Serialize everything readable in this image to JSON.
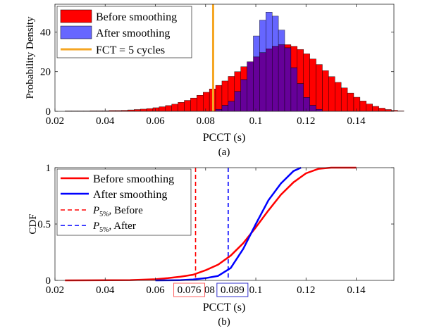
{
  "chart_data": [
    {
      "type": "histogram",
      "panel_caption": "(a)",
      "xlabel": "PCCT (s)",
      "ylabel": "Probability Density",
      "xlim": [
        0.02,
        0.155
      ],
      "ylim": [
        0,
        54
      ],
      "xticks": [
        0.02,
        0.04,
        0.06,
        0.08,
        0.1,
        0.12,
        0.14
      ],
      "xtick_labels": [
        "0.02",
        "0.04",
        "0.06",
        "0.08",
        "0.1",
        "0.12",
        "0.14"
      ],
      "yticks": [
        0,
        20,
        40
      ],
      "ytick_labels": [
        "0",
        "20",
        "40"
      ],
      "bin_start": 0.024,
      "bin_width": 0.0025,
      "series": [
        {
          "name": "Before smoothing",
          "color": "#ff0000",
          "values": [
            0.2,
            0.2,
            0.2,
            0.2,
            0.3,
            0.3,
            0.3,
            0.4,
            0.4,
            0.5,
            0.7,
            0.9,
            1.1,
            1.4,
            1.8,
            2.3,
            2.9,
            3.6,
            4.5,
            5.5,
            6.7,
            8.1,
            9.6,
            11.3,
            13.1,
            15.3,
            17.6,
            20,
            22.5,
            25,
            27.4,
            29.6,
            31.5,
            32.8,
            33.6,
            33.6,
            32.8,
            31.2,
            29,
            26.4,
            23.6,
            20.5,
            17.5,
            14.6,
            11.8,
            9.2,
            7.1,
            5.2,
            3.7,
            2.5,
            1.6,
            0.9,
            0.5,
            0.2
          ]
        },
        {
          "name": "After smoothing",
          "color": "#6666ff",
          "values": [
            0,
            0,
            0,
            0,
            0,
            0,
            0,
            0,
            0,
            0,
            0,
            0,
            0,
            0,
            0,
            0,
            0,
            0,
            0,
            0,
            0,
            0,
            0,
            0,
            1,
            3,
            5,
            10,
            16,
            25,
            38,
            46,
            50,
            48,
            41,
            32,
            22,
            14,
            7,
            3,
            1,
            0,
            0,
            0,
            0,
            0,
            0,
            0,
            0,
            0,
            0,
            0,
            0,
            0
          ]
        }
      ],
      "overlap_color": "#660099",
      "vline": {
        "name": "FCT = 5 cycles",
        "x": 0.083,
        "color": "#f5a623"
      },
      "legend": {
        "position": "top-left",
        "entries": [
          "Before smoothing",
          "After smoothing",
          "FCT = 5 cycles"
        ]
      }
    },
    {
      "type": "line",
      "panel_caption": "(b)",
      "xlabel": "PCCT (s)",
      "ylabel": "CDF",
      "xlim": [
        0.02,
        0.155
      ],
      "ylim": [
        0,
        1
      ],
      "xticks": [
        0.02,
        0.04,
        0.06,
        0.08,
        0.1,
        0.12,
        0.14
      ],
      "xtick_labels": [
        "0.02",
        "0.04",
        "0.06",
        "0.08",
        "0.1",
        "0.12",
        "0.14"
      ],
      "yticks": [
        0,
        0.5,
        1
      ],
      "ytick_labels": [
        "0",
        "0.5",
        "1"
      ],
      "series": [
        {
          "name": "Before smoothing",
          "color": "#ff0000",
          "x": [
            0.024,
            0.05,
            0.06,
            0.065,
            0.07,
            0.075,
            0.08,
            0.085,
            0.09,
            0.095,
            0.1,
            0.105,
            0.11,
            0.115,
            0.12,
            0.125,
            0.13,
            0.14
          ],
          "y": [
            0,
            0.002,
            0.01,
            0.02,
            0.033,
            0.05,
            0.09,
            0.14,
            0.22,
            0.33,
            0.47,
            0.62,
            0.76,
            0.87,
            0.95,
            0.99,
            1.0,
            1.0
          ]
        },
        {
          "name": "After smoothing",
          "color": "#0000ff",
          "x": [
            0.06,
            0.07,
            0.075,
            0.08,
            0.085,
            0.09,
            0.095,
            0.1,
            0.105,
            0.11,
            0.115,
            0.118
          ],
          "y": [
            0,
            0.002,
            0.008,
            0.02,
            0.04,
            0.11,
            0.28,
            0.5,
            0.71,
            0.86,
            0.97,
            1.0
          ]
        }
      ],
      "vlines": [
        {
          "name": "P5% Before",
          "x": 0.076,
          "color": "#ff0000",
          "style": "dashed"
        },
        {
          "name": "P5% After",
          "x": 0.089,
          "color": "#0000ff",
          "style": "dashed"
        }
      ],
      "annotations": [
        {
          "text": "0.076",
          "x": 0.076,
          "color": "#ff6666"
        },
        {
          "text": "0.089",
          "x": 0.089,
          "color": "#3333cc"
        }
      ],
      "legend": {
        "position": "top-left",
        "entries": [
          {
            "label": "Before smoothing"
          },
          {
            "label": "After smoothing"
          },
          {
            "label_main": "P",
            "label_sub": "5%",
            "label_rest": ", Before"
          },
          {
            "label_main": "P",
            "label_sub": "5%",
            "label_rest": ", After"
          }
        ]
      }
    }
  ]
}
